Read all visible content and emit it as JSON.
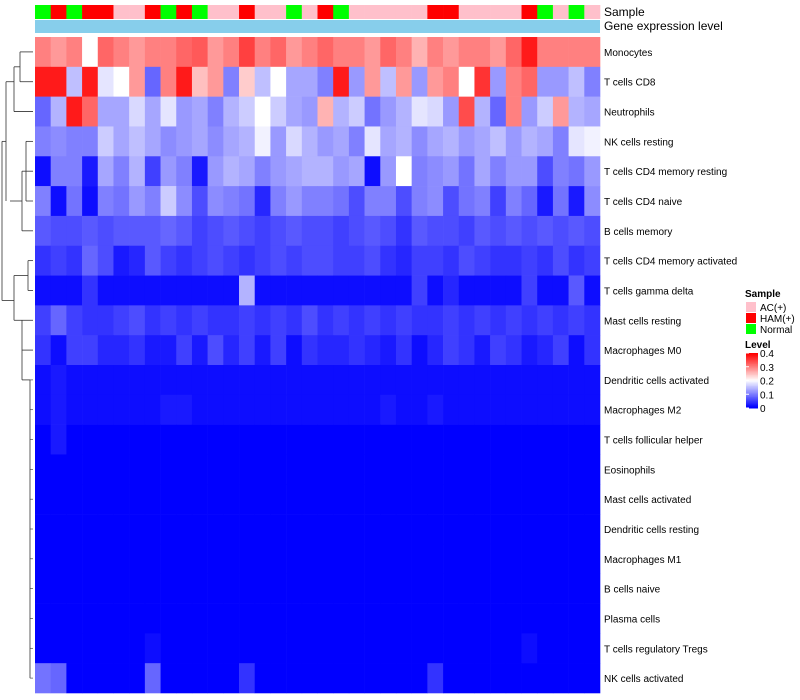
{
  "chart_data": {
    "type": "heatmap",
    "title": "",
    "annotation_tracks": [
      {
        "name": "Sample",
        "values": [
          "Normal",
          "HAM(+)",
          "Normal",
          "HAM(+)",
          "HAM(+)",
          "AC(+)",
          "AC(+)",
          "HAM(+)",
          "Normal",
          "HAM(+)",
          "Normal",
          "AC(+)",
          "AC(+)",
          "HAM(+)",
          "AC(+)",
          "AC(+)",
          "Normal",
          "AC(+)",
          "HAM(+)",
          "Normal",
          "AC(+)",
          "AC(+)",
          "AC(+)",
          "AC(+)",
          "AC(+)",
          "HAM(+)",
          "HAM(+)",
          "AC(+)",
          "AC(+)",
          "AC(+)",
          "AC(+)",
          "HAM(+)",
          "Normal",
          "AC(+)",
          "Normal",
          "AC(+)"
        ]
      },
      {
        "name": "Gene expression level",
        "color": "#87CEEB"
      }
    ],
    "rows": [
      "Monocytes",
      "T cells CD8",
      "Neutrophils",
      "NK cells resting",
      "T cells CD4 memory resting",
      "T cells CD4 naive",
      "B cells memory",
      "T cells CD4 memory activated",
      "T cells gamma delta",
      "Mast cells resting",
      "Macrophages M0",
      "Dendritic cells activated",
      "Macrophages M2",
      "T cells follicular helper",
      "Eosinophils",
      "Mast cells activated",
      "Dendritic cells resting",
      "Macrophages M1",
      "B cells naive",
      "Plasma cells",
      "T cells regulatory  Tregs",
      "NK cells activated"
    ],
    "values": [
      [
        0.3,
        0.28,
        0.3,
        0.2,
        0.32,
        0.3,
        0.28,
        0.3,
        0.3,
        0.32,
        0.33,
        0.28,
        0.3,
        0.35,
        0.3,
        0.32,
        0.28,
        0.3,
        0.32,
        0.3,
        0.3,
        0.28,
        0.32,
        0.3,
        0.26,
        0.3,
        0.28,
        0.3,
        0.3,
        0.28,
        0.32,
        0.38,
        0.3,
        0.3,
        0.3,
        0.3
      ],
      [
        0.38,
        0.38,
        0.15,
        0.38,
        0.18,
        0.2,
        0.28,
        0.08,
        0.3,
        0.38,
        0.25,
        0.28,
        0.1,
        0.24,
        0.15,
        0.2,
        0.13,
        0.13,
        0.1,
        0.38,
        0.12,
        0.28,
        0.15,
        0.28,
        0.12,
        0.28,
        0.3,
        0.2,
        0.36,
        0.12,
        0.3,
        0.32,
        0.12,
        0.12,
        0.15,
        0.1
      ],
      [
        0.08,
        0.14,
        0.38,
        0.32,
        0.13,
        0.13,
        0.17,
        0.13,
        0.18,
        0.12,
        0.13,
        0.1,
        0.14,
        0.16,
        0.2,
        0.16,
        0.13,
        0.12,
        0.26,
        0.14,
        0.16,
        0.09,
        0.12,
        0.14,
        0.18,
        0.17,
        0.12,
        0.34,
        0.14,
        0.08,
        0.3,
        0.12,
        0.16,
        0.28,
        0.14,
        0.13
      ],
      [
        0.1,
        0.11,
        0.1,
        0.1,
        0.16,
        0.13,
        0.15,
        0.13,
        0.11,
        0.12,
        0.13,
        0.11,
        0.13,
        0.14,
        0.19,
        0.12,
        0.17,
        0.14,
        0.12,
        0.13,
        0.1,
        0.18,
        0.13,
        0.14,
        0.11,
        0.13,
        0.14,
        0.12,
        0.13,
        0.15,
        0.12,
        0.14,
        0.13,
        0.1,
        0.18,
        0.19
      ],
      [
        0.01,
        0.1,
        0.1,
        0.02,
        0.13,
        0.1,
        0.14,
        0.05,
        0.12,
        0.1,
        0.02,
        0.12,
        0.14,
        0.13,
        0.1,
        0.12,
        0.13,
        0.14,
        0.14,
        0.12,
        0.13,
        0.01,
        0.12,
        0.2,
        0.1,
        0.11,
        0.12,
        0.09,
        0.13,
        0.1,
        0.12,
        0.12,
        0.06,
        0.1,
        0.09,
        0.12
      ],
      [
        0.1,
        0.01,
        0.09,
        0.01,
        0.1,
        0.09,
        0.12,
        0.1,
        0.16,
        0.11,
        0.06,
        0.11,
        0.1,
        0.09,
        0.03,
        0.1,
        0.12,
        0.1,
        0.1,
        0.09,
        0.06,
        0.1,
        0.1,
        0.06,
        0.1,
        0.11,
        0.06,
        0.09,
        0.1,
        0.05,
        0.1,
        0.08,
        0.02,
        0.09,
        0.02,
        0.11
      ],
      [
        0.07,
        0.06,
        0.06,
        0.07,
        0.06,
        0.07,
        0.07,
        0.07,
        0.08,
        0.07,
        0.05,
        0.06,
        0.07,
        0.06,
        0.05,
        0.06,
        0.07,
        0.06,
        0.06,
        0.05,
        0.06,
        0.07,
        0.06,
        0.04,
        0.07,
        0.06,
        0.06,
        0.05,
        0.07,
        0.06,
        0.07,
        0.06,
        0.07,
        0.06,
        0.07,
        0.06
      ],
      [
        0.04,
        0.05,
        0.04,
        0.08,
        0.06,
        0.02,
        0.03,
        0.07,
        0.05,
        0.04,
        0.05,
        0.06,
        0.05,
        0.04,
        0.05,
        0.06,
        0.05,
        0.06,
        0.06,
        0.05,
        0.05,
        0.06,
        0.04,
        0.03,
        0.05,
        0.05,
        0.04,
        0.06,
        0.05,
        0.04,
        0.04,
        0.05,
        0.04,
        0.06,
        0.04,
        0.05
      ],
      [
        0.01,
        0.01,
        0.01,
        0.04,
        0.01,
        0.01,
        0.01,
        0.01,
        0.01,
        0.01,
        0.01,
        0.01,
        0.01,
        0.14,
        0.01,
        0.01,
        0.01,
        0.01,
        0.01,
        0.01,
        0.01,
        0.01,
        0.01,
        0.01,
        0.05,
        0.01,
        0.03,
        0.01,
        0.01,
        0.01,
        0.01,
        0.05,
        0.01,
        0.01,
        0.07,
        0.01
      ],
      [
        0.05,
        0.08,
        0.05,
        0.04,
        0.04,
        0.05,
        0.06,
        0.04,
        0.05,
        0.04,
        0.05,
        0.04,
        0.04,
        0.05,
        0.04,
        0.05,
        0.04,
        0.06,
        0.04,
        0.05,
        0.04,
        0.05,
        0.04,
        0.05,
        0.04,
        0.04,
        0.05,
        0.04,
        0.05,
        0.04,
        0.05,
        0.04,
        0.05,
        0.04,
        0.05,
        0.04
      ],
      [
        0.04,
        0.01,
        0.05,
        0.05,
        0.03,
        0.03,
        0.04,
        0.02,
        0.02,
        0.05,
        0.02,
        0.06,
        0.03,
        0.05,
        0.02,
        0.05,
        0.01,
        0.04,
        0.03,
        0.03,
        0.04,
        0.03,
        0.02,
        0.04,
        0.01,
        0.03,
        0.05,
        0.04,
        0.02,
        0.05,
        0.04,
        0.02,
        0.03,
        0.05,
        0.01,
        0.04
      ],
      [
        0.01,
        0.02,
        0.01,
        0.01,
        0.01,
        0.01,
        0.01,
        0.01,
        0.01,
        0.01,
        0.01,
        0.01,
        0.01,
        0.01,
        0.01,
        0.01,
        0.01,
        0.01,
        0.01,
        0.01,
        0.01,
        0.01,
        0.01,
        0.01,
        0.01,
        0.01,
        0.01,
        0.01,
        0.01,
        0.01,
        0.01,
        0.01,
        0.01,
        0.01,
        0.01,
        0.01
      ],
      [
        0.01,
        0.02,
        0.01,
        0.01,
        0.01,
        0.01,
        0.01,
        0.01,
        0.02,
        0.02,
        0.01,
        0.01,
        0.01,
        0.01,
        0.01,
        0.01,
        0.01,
        0.01,
        0.01,
        0.01,
        0.01,
        0.01,
        0.02,
        0.01,
        0.01,
        0.02,
        0.01,
        0.01,
        0.01,
        0.01,
        0.01,
        0.01,
        0.01,
        0.01,
        0.01,
        0.01
      ],
      [
        0.0,
        0.02,
        0.0,
        0.0,
        0.0,
        0.0,
        0.0,
        0.0,
        0.0,
        0.0,
        0.0,
        0.0,
        0.0,
        0.0,
        0.0,
        0.0,
        0.0,
        0.0,
        0.0,
        0.0,
        0.0,
        0.0,
        0.0,
        0.0,
        0.0,
        0.0,
        0.0,
        0.0,
        0.0,
        0.0,
        0.0,
        0.0,
        0.0,
        0.0,
        0.0,
        0.0
      ],
      [
        0.0,
        0.0,
        0.0,
        0.0,
        0.0,
        0.0,
        0.0,
        0.0,
        0.0,
        0.0,
        0.0,
        0.0,
        0.0,
        0.0,
        0.0,
        0.0,
        0.0,
        0.0,
        0.0,
        0.0,
        0.0,
        0.0,
        0.0,
        0.0,
        0.0,
        0.0,
        0.0,
        0.0,
        0.0,
        0.0,
        0.0,
        0.0,
        0.0,
        0.0,
        0.0,
        0.0
      ],
      [
        0.0,
        0.0,
        0.0,
        0.0,
        0.0,
        0.0,
        0.0,
        0.0,
        0.0,
        0.0,
        0.0,
        0.0,
        0.0,
        0.0,
        0.0,
        0.0,
        0.0,
        0.0,
        0.0,
        0.0,
        0.0,
        0.0,
        0.0,
        0.0,
        0.0,
        0.0,
        0.0,
        0.0,
        0.0,
        0.0,
        0.0,
        0.0,
        0.0,
        0.0,
        0.0,
        0.0
      ],
      [
        0.0,
        0.0,
        0.0,
        0.0,
        0.0,
        0.0,
        0.0,
        0.0,
        0.0,
        0.0,
        0.0,
        0.0,
        0.0,
        0.0,
        0.0,
        0.0,
        0.0,
        0.0,
        0.0,
        0.0,
        0.0,
        0.0,
        0.0,
        0.0,
        0.0,
        0.0,
        0.0,
        0.0,
        0.0,
        0.0,
        0.0,
        0.0,
        0.0,
        0.0,
        0.0,
        0.0
      ],
      [
        0.0,
        0.0,
        0.0,
        0.0,
        0.0,
        0.0,
        0.0,
        0.0,
        0.0,
        0.0,
        0.0,
        0.0,
        0.0,
        0.0,
        0.0,
        0.0,
        0.0,
        0.0,
        0.0,
        0.0,
        0.0,
        0.0,
        0.0,
        0.0,
        0.0,
        0.0,
        0.0,
        0.0,
        0.0,
        0.0,
        0.0,
        0.0,
        0.0,
        0.0,
        0.0,
        0.0
      ],
      [
        0.0,
        0.0,
        0.0,
        0.0,
        0.0,
        0.0,
        0.0,
        0.0,
        0.0,
        0.0,
        0.0,
        0.0,
        0.0,
        0.0,
        0.0,
        0.0,
        0.0,
        0.0,
        0.0,
        0.0,
        0.0,
        0.0,
        0.0,
        0.0,
        0.0,
        0.0,
        0.0,
        0.0,
        0.0,
        0.0,
        0.0,
        0.0,
        0.0,
        0.0,
        0.0,
        0.0
      ],
      [
        0.0,
        0.0,
        0.0,
        0.0,
        0.0,
        0.0,
        0.0,
        0.0,
        0.0,
        0.0,
        0.0,
        0.0,
        0.0,
        0.0,
        0.0,
        0.0,
        0.0,
        0.0,
        0.0,
        0.0,
        0.0,
        0.0,
        0.0,
        0.0,
        0.0,
        0.0,
        0.0,
        0.0,
        0.0,
        0.0,
        0.0,
        0.0,
        0.0,
        0.0,
        0.0,
        0.0
      ],
      [
        0.0,
        0.0,
        0.0,
        0.0,
        0.0,
        0.0,
        0.0,
        0.01,
        0.0,
        0.0,
        0.0,
        0.0,
        0.0,
        0.0,
        0.0,
        0.0,
        0.0,
        0.0,
        0.0,
        0.0,
        0.0,
        0.0,
        0.0,
        0.0,
        0.0,
        0.0,
        0.0,
        0.0,
        0.0,
        0.0,
        0.0,
        0.01,
        0.0,
        0.0,
        0.0,
        0.0
      ],
      [
        0.09,
        0.08,
        0.0,
        0.0,
        0.0,
        0.0,
        0.0,
        0.08,
        0.0,
        0.0,
        0.0,
        0.0,
        0.0,
        0.04,
        0.0,
        0.0,
        0.0,
        0.0,
        0.0,
        0.0,
        0.0,
        0.0,
        0.0,
        0.0,
        0.0,
        0.04,
        0.0,
        0.0,
        0.0,
        0.0,
        0.0,
        0.0,
        0.0,
        0.0,
        0.0,
        0.0
      ]
    ],
    "color_scale": {
      "min": 0,
      "mid": 0.2,
      "max": 0.4,
      "low": "#0000FF",
      "midColor": "#FFFFFF",
      "high": "#FF0000"
    },
    "row_clustering": "dendrogram"
  },
  "legend": {
    "sample_title": "Sample",
    "sample_items": [
      {
        "label": "AC(+)",
        "color": "#FFC0CB"
      },
      {
        "label": "HAM(+)",
        "color": "#FF0000"
      },
      {
        "label": "Normal",
        "color": "#00FF00"
      }
    ],
    "level_title": "Level",
    "level_ticks": [
      "0.4",
      "0.3",
      "0.2",
      "0.1",
      "0"
    ],
    "level_values": [
      0.4,
      0.3,
      0.2,
      0.1,
      0
    ]
  }
}
